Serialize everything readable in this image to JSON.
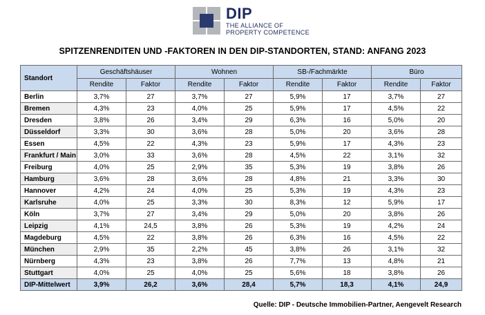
{
  "logo": {
    "name": "DIP",
    "line1": "THE ALLIANCE OF",
    "line2": "PROPERTY COMPETENCE"
  },
  "title": "SPITZENRENDITEN UND -FAKTOREN IN DEN DIP-STANDORTEN, STAND: ANFANG 2023",
  "table": {
    "location_header": "Standort",
    "groups": [
      "Geschäftshäuser",
      "Wohnen",
      "SB-/Fachmärkte",
      "Büro"
    ],
    "subheaders": [
      "Rendite",
      "Faktor",
      "Rendite",
      "Faktor",
      "Rendite",
      "Faktor",
      "Rendite",
      "Faktor"
    ],
    "rows": [
      {
        "city": "Berlin",
        "values": [
          "3,7%",
          "27",
          "3,7%",
          "27",
          "5,9%",
          "17",
          "3,7%",
          "27"
        ]
      },
      {
        "city": "Bremen",
        "values": [
          "4,3%",
          "23",
          "4,0%",
          "25",
          "5,9%",
          "17",
          "4,5%",
          "22"
        ]
      },
      {
        "city": "Dresden",
        "values": [
          "3,8%",
          "26",
          "3,4%",
          "29",
          "6,3%",
          "16",
          "5,0%",
          "20"
        ]
      },
      {
        "city": "Düsseldorf",
        "values": [
          "3,3%",
          "30",
          "3,6%",
          "28",
          "5,0%",
          "20",
          "3,6%",
          "28"
        ]
      },
      {
        "city": "Essen",
        "values": [
          "4,5%",
          "22",
          "4,3%",
          "23",
          "5,9%",
          "17",
          "4,3%",
          "23"
        ]
      },
      {
        "city": "Frankfurt / Main",
        "values": [
          "3,0%",
          "33",
          "3,6%",
          "28",
          "4,5%",
          "22",
          "3,1%",
          "32"
        ]
      },
      {
        "city": "Freiburg",
        "values": [
          "4,0%",
          "25",
          "2,9%",
          "35",
          "5,3%",
          "19",
          "3,8%",
          "26"
        ]
      },
      {
        "city": "Hamburg",
        "values": [
          "3,6%",
          "28",
          "3,6%",
          "28",
          "4,8%",
          "21",
          "3,3%",
          "30"
        ]
      },
      {
        "city": "Hannover",
        "values": [
          "4,2%",
          "24",
          "4,0%",
          "25",
          "5,3%",
          "19",
          "4,3%",
          "23"
        ]
      },
      {
        "city": "Karlsruhe",
        "values": [
          "4,0%",
          "25",
          "3,3%",
          "30",
          "8,3%",
          "12",
          "5,9%",
          "17"
        ]
      },
      {
        "city": "Köln",
        "values": [
          "3,7%",
          "27",
          "3,4%",
          "29",
          "5,0%",
          "20",
          "3,8%",
          "26"
        ]
      },
      {
        "city": "Leipzig",
        "values": [
          "4,1%",
          "24,5",
          "3,8%",
          "26",
          "5,3%",
          "19",
          "4,2%",
          "24"
        ]
      },
      {
        "city": "Magdeburg",
        "values": [
          "4,5%",
          "22",
          "3,8%",
          "26",
          "6,3%",
          "16",
          "4,5%",
          "22"
        ]
      },
      {
        "city": "München",
        "values": [
          "2,9%",
          "35",
          "2,2%",
          "45",
          "3,8%",
          "26",
          "3,1%",
          "32"
        ]
      },
      {
        "city": "Nürnberg",
        "values": [
          "4,3%",
          "23",
          "3,8%",
          "26",
          "7,7%",
          "13",
          "4,8%",
          "21"
        ]
      },
      {
        "city": "Stuttgart",
        "values": [
          "4,0%",
          "25",
          "4,0%",
          "25",
          "5,6%",
          "18",
          "3,8%",
          "26"
        ]
      }
    ],
    "mean": {
      "city": "DIP-Mittelwert",
      "values": [
        "3,9%",
        "26,2",
        "3,6%",
        "28,4",
        "5,7%",
        "18,3",
        "4,1%",
        "24,9"
      ]
    }
  },
  "source": "Quelle: DIP - Deutsche Immobilien-Partner, Aengevelt Research"
}
